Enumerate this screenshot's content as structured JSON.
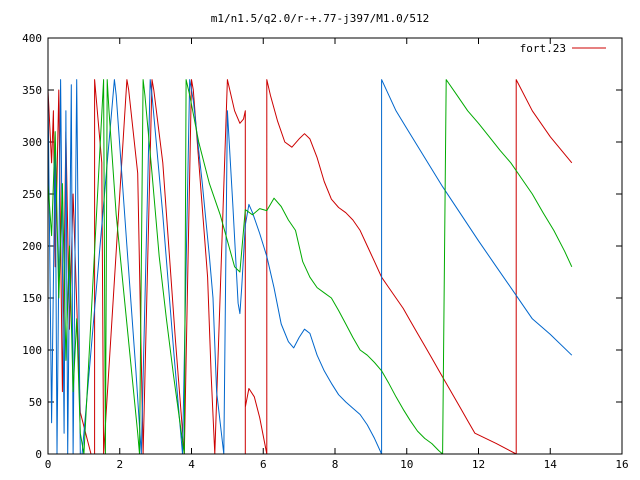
{
  "chart_data": {
    "type": "line",
    "title": "m1/n1.5/q2.0/r-+.77-j397/M1.0/512",
    "xlabel": "",
    "ylabel": "",
    "xlim": [
      0,
      16
    ],
    "ylim": [
      0,
      400
    ],
    "xticks": [
      0,
      2,
      4,
      6,
      8,
      10,
      12,
      14,
      16
    ],
    "yticks": [
      0,
      50,
      100,
      150,
      200,
      250,
      300,
      350,
      400
    ],
    "grid": false,
    "legend": {
      "position": "top-right",
      "entries": [
        "fort.23"
      ]
    },
    "series": [
      {
        "name": "fort.23",
        "color": "#cc0000",
        "points": [
          [
            0.0,
            350
          ],
          [
            0.1,
            280
          ],
          [
            0.15,
            330
          ],
          [
            0.2,
            180
          ],
          [
            0.3,
            350
          ],
          [
            0.4,
            60
          ],
          [
            0.5,
            310
          ],
          [
            0.6,
            120
          ],
          [
            0.7,
            250
          ],
          [
            0.9,
            40
          ],
          [
            1.2,
            0
          ],
          [
            1.3,
            0
          ],
          [
            1.3,
            360
          ],
          [
            1.35,
            340
          ],
          [
            1.5,
            280
          ],
          [
            1.55,
            0
          ],
          [
            1.55,
            0
          ],
          [
            2.2,
            360
          ],
          [
            2.25,
            350
          ],
          [
            2.5,
            270
          ],
          [
            2.65,
            0
          ],
          [
            2.65,
            0
          ],
          [
            2.9,
            360
          ],
          [
            2.95,
            350
          ],
          [
            3.2,
            280
          ],
          [
            3.55,
            110
          ],
          [
            3.8,
            0
          ],
          [
            3.8,
            0
          ],
          [
            4.0,
            360
          ],
          [
            4.05,
            350
          ],
          [
            4.45,
            170
          ],
          [
            4.55,
            75
          ],
          [
            4.65,
            0
          ],
          [
            4.65,
            0
          ],
          [
            5.0,
            360
          ],
          [
            5.2,
            330
          ],
          [
            5.35,
            318
          ],
          [
            5.45,
            322
          ],
          [
            5.5,
            330
          ],
          [
            5.5,
            0
          ],
          [
            5.5,
            0
          ],
          [
            5.5,
            45
          ],
          [
            5.6,
            63
          ],
          [
            5.75,
            55
          ],
          [
            5.9,
            35
          ],
          [
            6.1,
            0
          ],
          [
            6.1,
            0
          ],
          [
            6.1,
            360
          ],
          [
            6.2,
            345
          ],
          [
            6.4,
            320
          ],
          [
            6.6,
            300
          ],
          [
            6.8,
            295
          ],
          [
            7.0,
            303
          ],
          [
            7.15,
            308
          ],
          [
            7.3,
            303
          ],
          [
            7.5,
            285
          ],
          [
            7.7,
            262
          ],
          [
            7.9,
            245
          ],
          [
            8.1,
            237
          ],
          [
            8.3,
            232
          ],
          [
            8.5,
            225
          ],
          [
            8.7,
            215
          ],
          [
            8.9,
            200
          ],
          [
            9.1,
            185
          ],
          [
            9.3,
            170
          ],
          [
            9.5,
            160
          ],
          [
            9.7,
            150
          ],
          [
            9.9,
            140
          ],
          [
            10.1,
            128
          ],
          [
            10.3,
            116
          ],
          [
            10.5,
            104
          ],
          [
            10.7,
            92
          ],
          [
            10.9,
            80
          ],
          [
            11.1,
            68
          ],
          [
            11.3,
            56
          ],
          [
            11.5,
            44
          ],
          [
            11.7,
            32
          ],
          [
            11.9,
            20
          ],
          [
            12.5,
            10
          ],
          [
            13.05,
            0
          ],
          [
            13.05,
            0
          ],
          [
            13.05,
            360
          ],
          [
            13.5,
            330
          ],
          [
            14.0,
            305
          ],
          [
            14.6,
            280
          ]
        ]
      },
      {
        "name": "",
        "color": "#0066cc",
        "points": [
          [
            0.0,
            350
          ],
          [
            0.1,
            30
          ],
          [
            0.2,
            300
          ],
          [
            0.25,
            0
          ],
          [
            0.35,
            360
          ],
          [
            0.45,
            20
          ],
          [
            0.5,
            330
          ],
          [
            0.55,
            0
          ],
          [
            0.65,
            355
          ],
          [
            0.7,
            0
          ],
          [
            0.8,
            360
          ],
          [
            0.9,
            0
          ],
          [
            0.95,
            0
          ],
          [
            1.85,
            360
          ],
          [
            1.9,
            345
          ],
          [
            2.2,
            200
          ],
          [
            2.45,
            80
          ],
          [
            2.6,
            0
          ],
          [
            2.6,
            0
          ],
          [
            2.85,
            360
          ],
          [
            2.9,
            345
          ],
          [
            3.2,
            230
          ],
          [
            3.5,
            100
          ],
          [
            3.75,
            0
          ],
          [
            3.75,
            0
          ],
          [
            3.95,
            360
          ],
          [
            4.05,
            340
          ],
          [
            4.3,
            260
          ],
          [
            4.5,
            190
          ],
          [
            4.6,
            150
          ],
          [
            4.7,
            60
          ],
          [
            4.9,
            0
          ],
          [
            4.9,
            0
          ],
          [
            5.0,
            330
          ],
          [
            5.15,
            240
          ],
          [
            5.3,
            145
          ],
          [
            5.35,
            135
          ],
          [
            5.4,
            160
          ],
          [
            5.5,
            220
          ],
          [
            5.6,
            240
          ],
          [
            5.7,
            232
          ],
          [
            5.9,
            212
          ],
          [
            6.1,
            190
          ],
          [
            6.3,
            160
          ],
          [
            6.5,
            125
          ],
          [
            6.7,
            108
          ],
          [
            6.85,
            102
          ],
          [
            7.0,
            112
          ],
          [
            7.15,
            120
          ],
          [
            7.3,
            116
          ],
          [
            7.5,
            95
          ],
          [
            7.7,
            80
          ],
          [
            7.9,
            68
          ],
          [
            8.1,
            57
          ],
          [
            8.3,
            50
          ],
          [
            8.5,
            44
          ],
          [
            8.7,
            38
          ],
          [
            8.9,
            28
          ],
          [
            9.1,
            15
          ],
          [
            9.3,
            0
          ],
          [
            9.3,
            0
          ],
          [
            9.3,
            360
          ],
          [
            9.5,
            345
          ],
          [
            9.7,
            330
          ],
          [
            10.0,
            313
          ],
          [
            10.5,
            285
          ],
          [
            11.0,
            257
          ],
          [
            11.5,
            231
          ],
          [
            12.0,
            205
          ],
          [
            12.5,
            180
          ],
          [
            13.0,
            155
          ],
          [
            13.5,
            130
          ],
          [
            14.0,
            115
          ],
          [
            14.6,
            95
          ]
        ]
      },
      {
        "name": "",
        "color": "#00aa00",
        "points": [
          [
            0.0,
            260
          ],
          [
            0.1,
            210
          ],
          [
            0.2,
            310
          ],
          [
            0.3,
            150
          ],
          [
            0.4,
            260
          ],
          [
            0.5,
            90
          ],
          [
            0.6,
            200
          ],
          [
            0.7,
            60
          ],
          [
            0.8,
            130
          ],
          [
            0.9,
            20
          ],
          [
            1.0,
            0
          ],
          [
            1.0,
            0
          ],
          [
            1.55,
            360
          ],
          [
            1.6,
            0
          ],
          [
            1.65,
            360
          ],
          [
            1.7,
            330
          ],
          [
            1.9,
            230
          ],
          [
            2.1,
            160
          ],
          [
            2.3,
            90
          ],
          [
            2.5,
            20
          ],
          [
            2.55,
            0
          ],
          [
            2.55,
            0
          ],
          [
            2.65,
            360
          ],
          [
            2.7,
            345
          ],
          [
            2.9,
            270
          ],
          [
            3.1,
            190
          ],
          [
            3.3,
            130
          ],
          [
            3.5,
            75
          ],
          [
            3.7,
            25
          ],
          [
            3.8,
            0
          ],
          [
            3.8,
            0
          ],
          [
            3.85,
            360
          ],
          [
            3.95,
            345
          ],
          [
            4.2,
            300
          ],
          [
            4.5,
            260
          ],
          [
            4.8,
            230
          ],
          [
            5.0,
            205
          ],
          [
            5.2,
            180
          ],
          [
            5.35,
            175
          ],
          [
            5.5,
            235
          ],
          [
            5.7,
            230
          ],
          [
            5.9,
            236
          ],
          [
            6.1,
            234
          ],
          [
            6.3,
            246
          ],
          [
            6.5,
            238
          ],
          [
            6.7,
            225
          ],
          [
            6.9,
            215
          ],
          [
            7.1,
            185
          ],
          [
            7.3,
            170
          ],
          [
            7.5,
            160
          ],
          [
            7.7,
            155
          ],
          [
            7.9,
            150
          ],
          [
            8.1,
            138
          ],
          [
            8.3,
            125
          ],
          [
            8.5,
            112
          ],
          [
            8.7,
            100
          ],
          [
            8.9,
            95
          ],
          [
            9.1,
            88
          ],
          [
            9.3,
            80
          ],
          [
            9.5,
            68
          ],
          [
            9.7,
            55
          ],
          [
            9.9,
            43
          ],
          [
            10.1,
            32
          ],
          [
            10.3,
            22
          ],
          [
            10.5,
            15
          ],
          [
            10.7,
            10
          ],
          [
            10.9,
            3
          ],
          [
            11.0,
            0
          ],
          [
            11.0,
            0
          ],
          [
            11.1,
            360
          ],
          [
            11.4,
            345
          ],
          [
            11.7,
            330
          ],
          [
            12.0,
            318
          ],
          [
            12.3,
            305
          ],
          [
            12.6,
            292
          ],
          [
            12.9,
            280
          ],
          [
            13.2,
            265
          ],
          [
            13.5,
            250
          ],
          [
            13.8,
            232
          ],
          [
            14.1,
            215
          ],
          [
            14.4,
            195
          ],
          [
            14.6,
            180
          ]
        ]
      }
    ]
  }
}
